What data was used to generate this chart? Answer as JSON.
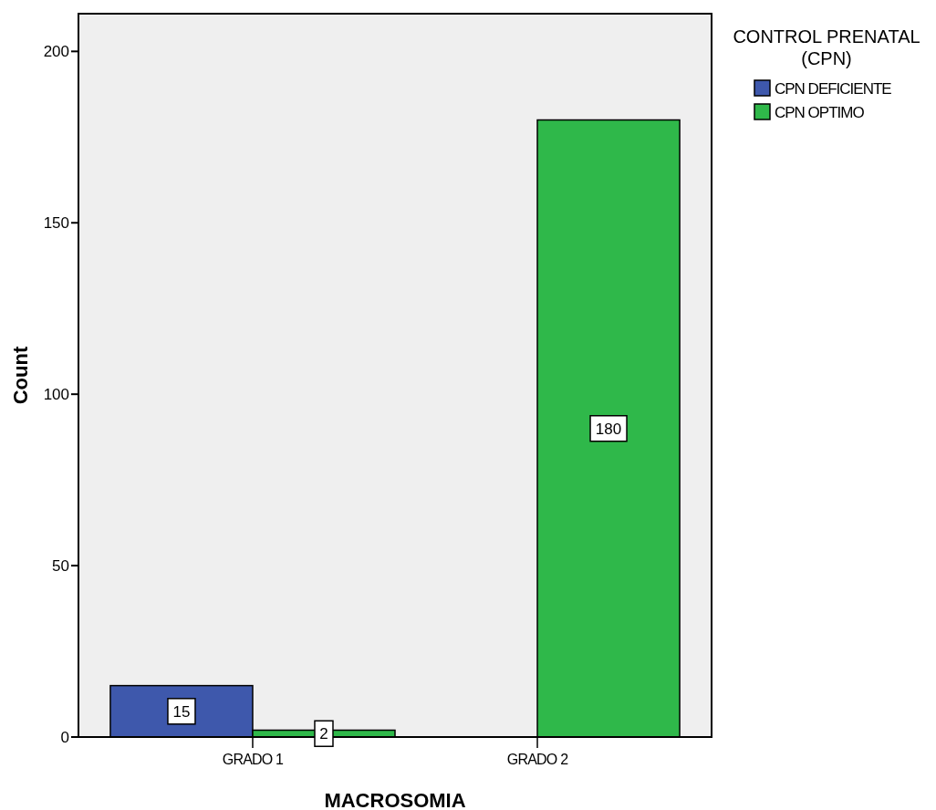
{
  "chart_data": {
    "type": "bar",
    "xlabel": "MACROSOMIA",
    "ylabel": "Count",
    "legend_title": "CONTROL PRENATAL (CPN)",
    "categories": [
      "GRADO 1",
      "GRADO 2"
    ],
    "series": [
      {
        "name": "CPN DEFICIENTE",
        "color": "#3e58ac",
        "values": [
          15,
          null
        ]
      },
      {
        "name": "CPN OPTIMO",
        "color": "#2fb84a",
        "values": [
          2,
          180
        ]
      }
    ],
    "ylim": [
      0,
      211
    ],
    "yticks": [
      0,
      50,
      100,
      150,
      200
    ],
    "grid": false,
    "legend": "top right",
    "data_labels": true
  }
}
